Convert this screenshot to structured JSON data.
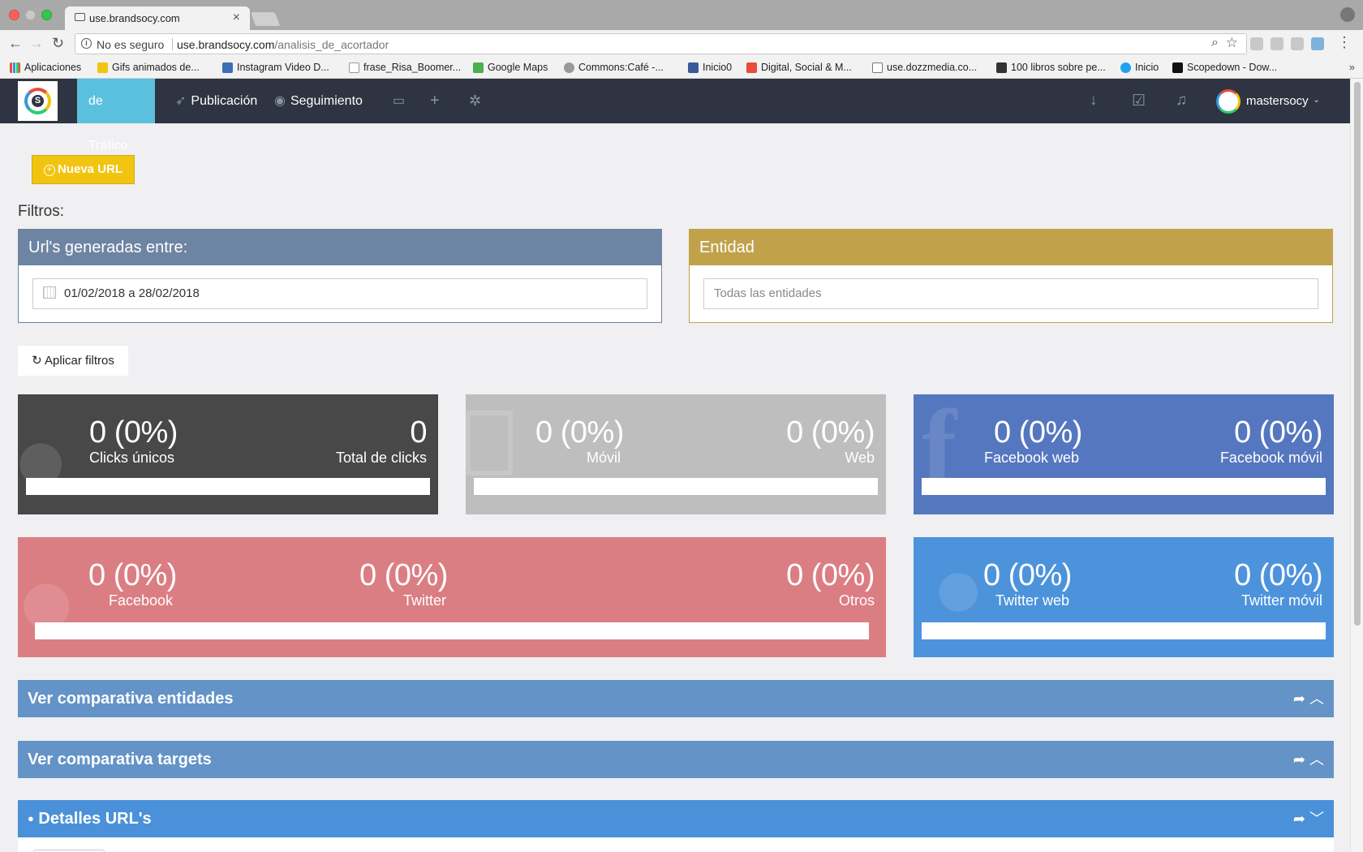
{
  "browser": {
    "tab_title": "use.brandsocy.com",
    "not_secure": "No es seguro",
    "url_host": "use.brandsocy.com",
    "url_path": "/analisis_de_acortador",
    "bookmarks": [
      "Aplicaciones",
      "Gifs animados de...",
      "Instagram Video D...",
      "frase_Risa_Boomer...",
      "Google Maps",
      "Commons:Café -...",
      "Inicio0",
      "Digital, Social & M...",
      "use.dozzmedia.co...",
      "100 libros sobre pe...",
      "Inicio",
      "Scopedown - Dow..."
    ]
  },
  "nav": {
    "active": "de Tráfico",
    "publicacion": "Publicación",
    "seguimiento": "Seguimiento",
    "user": "mastersocy"
  },
  "content": {
    "new_url": "Nueva URL",
    "filters_label": "Filtros:",
    "date_panel": {
      "title": "Url's generadas entre:",
      "value": "01/02/2018 a 28/02/2018"
    },
    "entity_panel": {
      "title": "Entidad",
      "placeholder": "Todas las entidades"
    },
    "apply": "Aplicar filtros"
  },
  "stats": {
    "unique": {
      "value": "0 (0%)",
      "label": "Clicks únicos"
    },
    "total": {
      "value": "0",
      "label": "Total de clicks"
    },
    "movil": {
      "value": "0 (0%)",
      "label": "Móvil"
    },
    "web": {
      "value": "0 (0%)",
      "label": "Web"
    },
    "fb_web": {
      "value": "0 (0%)",
      "label": "Facebook web"
    },
    "fb_movil": {
      "value": "0 (0%)",
      "label": "Facebook móvil"
    },
    "facebook": {
      "value": "0 (0%)",
      "label": "Facebook"
    },
    "twitter": {
      "value": "0 (0%)",
      "label": "Twitter"
    },
    "otros": {
      "value": "0 (0%)",
      "label": "Otros"
    },
    "tw_web": {
      "value": "0 (0%)",
      "label": "Twitter web"
    },
    "tw_movil": {
      "value": "0 (0%)",
      "label": "Twitter móvil"
    }
  },
  "sections": {
    "entidades": "Ver comparativa entidades",
    "targets": "Ver comparativa targets",
    "detalles": "Detalles URL's"
  },
  "colors": {
    "navbar": "#2e3441",
    "active_tab": "#5bc0de",
    "new_url_button": "#f1c40f",
    "date_panel": "#6e84a3",
    "entity_panel": "#c1a24a",
    "stat_dark": "#484848",
    "stat_grey": "#bebebe",
    "stat_facebook": "#5577bf",
    "stat_social": "#db7e83",
    "stat_twitter": "#4d93dc",
    "section_header": "#6393c7",
    "section_details": "#4a91d9"
  }
}
